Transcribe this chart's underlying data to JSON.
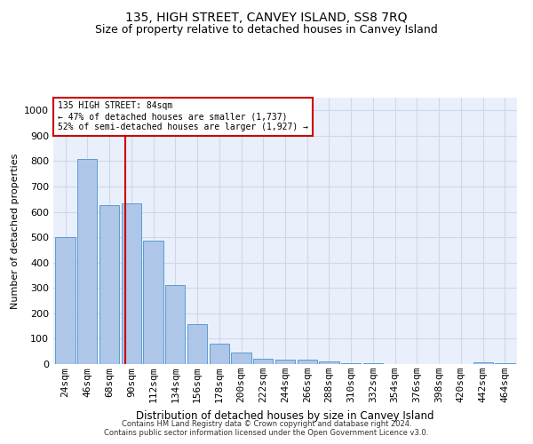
{
  "title": "135, HIGH STREET, CANVEY ISLAND, SS8 7RQ",
  "subtitle": "Size of property relative to detached houses in Canvey Island",
  "xlabel": "Distribution of detached houses by size in Canvey Island",
  "ylabel": "Number of detached properties",
  "footer_line1": "Contains HM Land Registry data © Crown copyright and database right 2024.",
  "footer_line2": "Contains public sector information licensed under the Open Government Licence v3.0.",
  "categories": [
    "24sqm",
    "46sqm",
    "68sqm",
    "90sqm",
    "112sqm",
    "134sqm",
    "156sqm",
    "178sqm",
    "200sqm",
    "222sqm",
    "244sqm",
    "266sqm",
    "288sqm",
    "310sqm",
    "332sqm",
    "354sqm",
    "376sqm",
    "398sqm",
    "420sqm",
    "442sqm",
    "464sqm"
  ],
  "values": [
    500,
    810,
    625,
    635,
    485,
    310,
    158,
    80,
    45,
    22,
    18,
    18,
    10,
    5,
    2,
    0,
    0,
    0,
    0,
    8,
    2
  ],
  "bar_color": "#aec6e8",
  "bar_edge_color": "#5b9bd5",
  "pct_smaller": 47,
  "n_smaller": 1737,
  "pct_larger_semi": 52,
  "n_larger_semi": 1927,
  "vline_color": "#cc0000",
  "annotation_box_color": "#cc0000",
  "ylim": [
    0,
    1050
  ],
  "yticks": [
    0,
    100,
    200,
    300,
    400,
    500,
    600,
    700,
    800,
    900,
    1000
  ],
  "grid_color": "#d0d8e8",
  "background_color": "#eaf0fb",
  "title_fontsize": 10,
  "subtitle_fontsize": 9,
  "bar_width": 0.9
}
